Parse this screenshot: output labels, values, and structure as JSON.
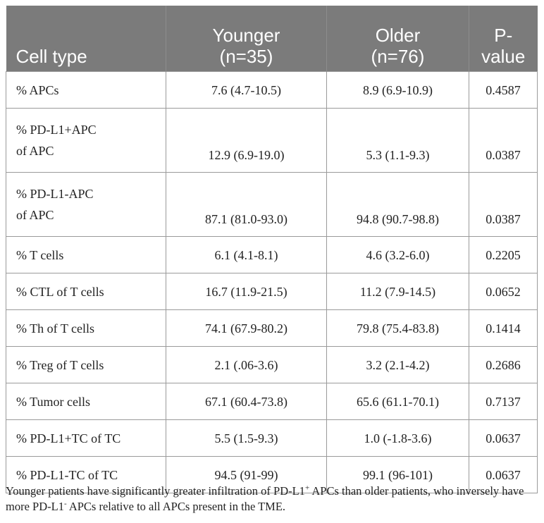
{
  "table": {
    "headers": [
      {
        "line1": "Cell type",
        "line2": ""
      },
      {
        "line1": "Younger",
        "line2": "(n=35)"
      },
      {
        "line1": "Older",
        "line2": "(n=76)"
      },
      {
        "line1": "P-",
        "line2": "value"
      }
    ],
    "rows": [
      {
        "label1": "% APCs",
        "label2": "",
        "younger": "7.6 (4.7-10.5)",
        "older": "8.9 (6.9-10.9)",
        "p": "0.4587"
      },
      {
        "label1": "% PD-L1+APC",
        "label2": "of APC",
        "younger": "12.9 (6.9-19.0)",
        "older": "5.3 (1.1-9.3)",
        "p": "0.0387"
      },
      {
        "label1": "% PD-L1-APC",
        "label2": "of APC",
        "younger": "87.1 (81.0-93.0)",
        "older": "94.8 (90.7-98.8)",
        "p": "0.0387"
      },
      {
        "label1": "% T cells",
        "label2": "",
        "younger": "6.1 (4.1-8.1)",
        "older": "4.6 (3.2-6.0)",
        "p": "0.2205"
      },
      {
        "label1": "% CTL of T cells",
        "label2": "",
        "younger": "16.7 (11.9-21.5)",
        "older": "11.2 (7.9-14.5)",
        "p": "0.0652"
      },
      {
        "label1": "% Th of T cells",
        "label2": "",
        "younger": "74.1 (67.9-80.2)",
        "older": "79.8 (75.4-83.8)",
        "p": "0.1414"
      },
      {
        "label1": "% Treg of T cells",
        "label2": "",
        "younger": "2.1 (.06-3.6)",
        "older": "3.2 (2.1-4.2)",
        "p": "0.2686"
      },
      {
        "label1": "% Tumor cells",
        "label2": "",
        "younger": "67.1 (60.4-73.8)",
        "older": "65.6 (61.1-70.1)",
        "p": "0.7137"
      },
      {
        "label1": "% PD-L1+TC of TC",
        "label2": "",
        "younger": "5.5 (1.5-9.3)",
        "older": "1.0 (-1.8-3.6)",
        "p": "0.0637"
      },
      {
        "label1": "% PD-L1-TC of TC",
        "label2": "",
        "younger": "94.5 (91-99)",
        "older": "99.1 (96-101)",
        "p": "0.0637"
      }
    ]
  },
  "caption": {
    "part1": "Younger patients have significantly greater infiltration of PD-L1",
    "sup1": "+",
    "part2": " APCs than older patients, who inversely have more PD-L1",
    "sup2": "-",
    "part3": " APCs relative to all APCs present in the TME."
  }
}
